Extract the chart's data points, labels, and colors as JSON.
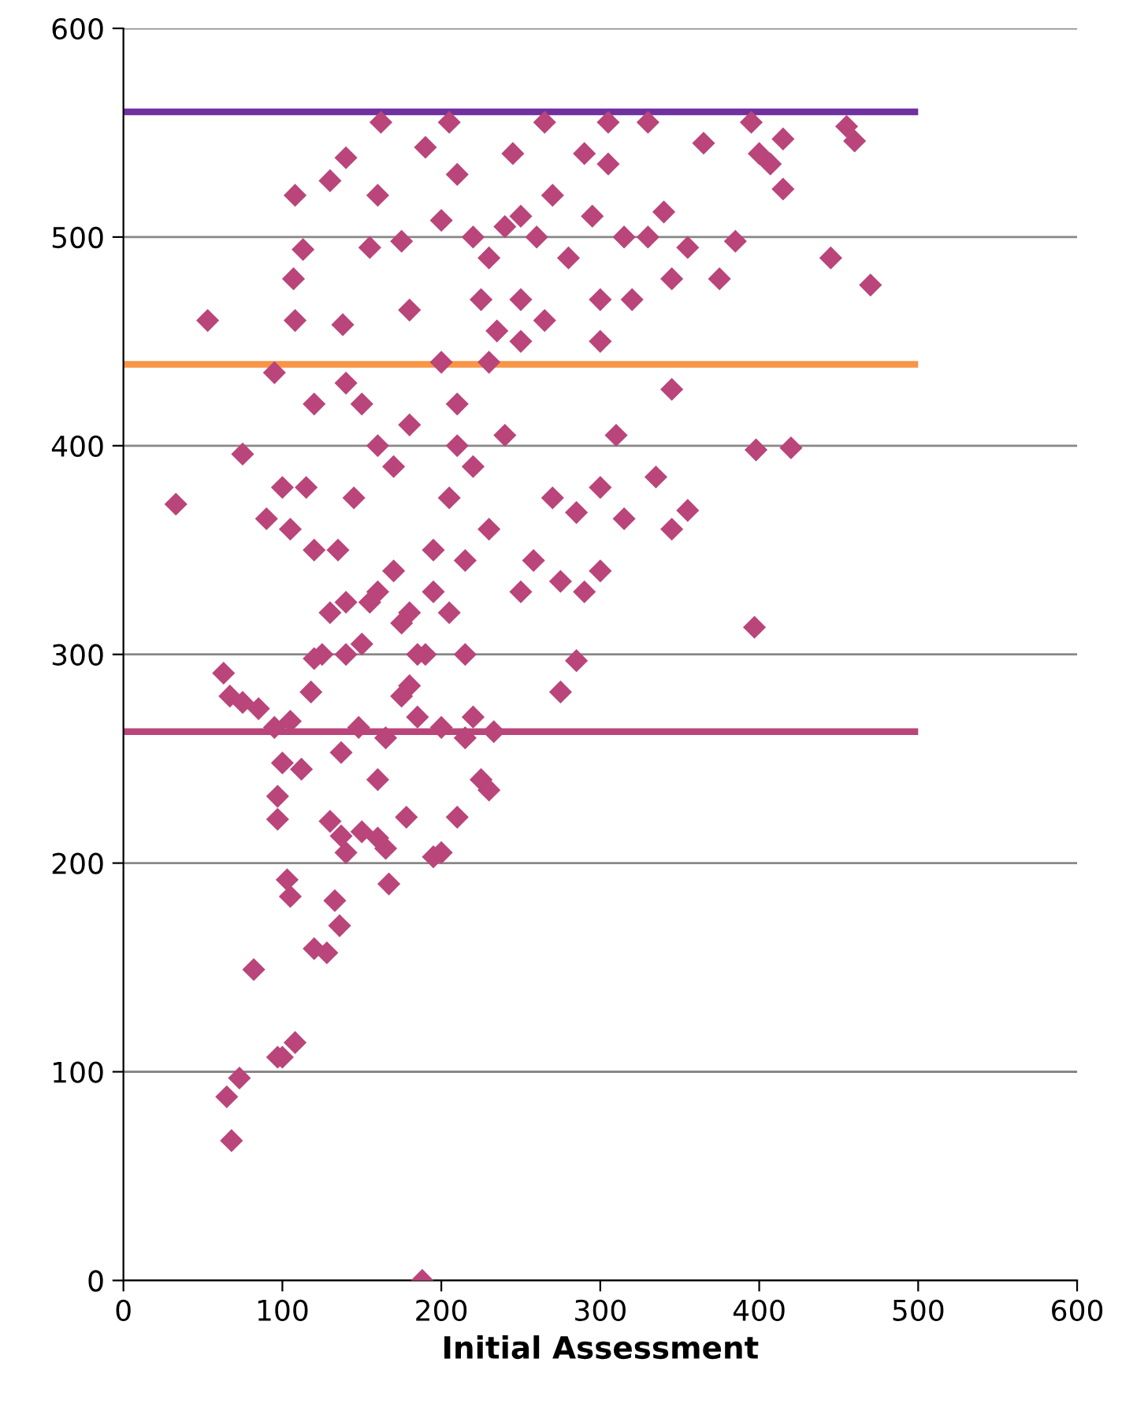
{
  "chart_data": {
    "type": "scatter",
    "xlabel": "Initial Assessment",
    "xlim": [
      0,
      600
    ],
    "xticks": [
      0,
      100,
      200,
      300,
      400,
      500,
      600
    ],
    "ylim": [
      0,
      600
    ],
    "yticks": [
      0,
      100,
      200,
      300,
      400,
      500,
      600
    ],
    "grid": "y",
    "marker": "diamond",
    "series": [
      {
        "color": "#b9457a",
        "x": [
          188,
          68,
          65,
          73,
          97,
          100,
          108,
          82,
          120,
          128,
          105,
          103,
          133,
          136,
          167,
          140,
          165,
          137,
          150,
          130,
          160,
          97,
          200,
          195,
          178,
          210,
          97,
          100,
          112,
          137,
          160,
          63,
          67,
          75,
          85,
          95,
          105,
          118,
          120,
          130,
          140,
          148,
          165,
          180,
          190,
          200,
          220,
          225,
          230,
          215,
          185,
          175,
          215,
          233,
          275,
          285,
          33,
          75,
          90,
          100,
          105,
          115,
          120,
          135,
          145,
          160,
          150,
          170,
          180,
          195,
          205,
          210,
          220,
          230,
          240,
          250,
          258,
          275,
          285,
          300,
          310,
          315,
          335,
          345,
          355,
          345,
          398,
          420,
          397,
          53,
          95,
          107,
          108,
          108,
          113,
          130,
          140,
          138,
          155,
          160,
          162,
          175,
          180,
          190,
          200,
          205,
          210,
          220,
          225,
          230,
          240,
          245,
          250,
          260,
          265,
          270,
          280,
          290,
          295,
          300,
          305,
          315,
          320,
          330,
          340,
          345,
          355,
          365,
          375,
          385,
          395,
          400,
          407,
          415,
          415,
          445,
          455,
          460,
          470,
          300,
          120,
          140,
          160,
          170,
          180,
          200,
          210,
          230,
          250,
          265,
          290,
          270,
          300,
          305,
          330,
          250,
          235,
          185,
          175,
          195,
          205,
          215,
          150,
          125,
          140,
          155
        ],
        "values": [
          0,
          67,
          88,
          97,
          107,
          107,
          114,
          149,
          159,
          157,
          184,
          192,
          182,
          170,
          190,
          205,
          207,
          213,
          215,
          220,
          212,
          221,
          205,
          203,
          222,
          222,
          232,
          248,
          245,
          253,
          240,
          291,
          280,
          277,
          274,
          265,
          268,
          282,
          298,
          320,
          300,
          265,
          260,
          285,
          300,
          265,
          270,
          240,
          235,
          300,
          270,
          280,
          260,
          263,
          282,
          297,
          372,
          396,
          365,
          380,
          360,
          380,
          350,
          350,
          375,
          400,
          420,
          390,
          410,
          350,
          375,
          400,
          390,
          360,
          405,
          330,
          345,
          335,
          368,
          340,
          405,
          365,
          385,
          360,
          369,
          427,
          398,
          399,
          313,
          460,
          435,
          480,
          460,
          520,
          494,
          527,
          538,
          458,
          495,
          520,
          555,
          498,
          465,
          543,
          508,
          555,
          530,
          500,
          470,
          490,
          505,
          540,
          470,
          500,
          555,
          520,
          490,
          540,
          510,
          470,
          555,
          500,
          470,
          500,
          512,
          480,
          495,
          545,
          480,
          498,
          555,
          540,
          535,
          523,
          547,
          490,
          553,
          546,
          477,
          450,
          420,
          430,
          330,
          340,
          320,
          440,
          420,
          440,
          450,
          460,
          330,
          375,
          380,
          535,
          555,
          510,
          455,
          300,
          315,
          330,
          320,
          345,
          305,
          300,
          325,
          325
        ]
      }
    ],
    "ref_lines": [
      {
        "axis": "y",
        "value": 560,
        "color": "#7030a0"
      },
      {
        "axis": "y",
        "value": 439,
        "color": "#f79646"
      },
      {
        "axis": "y",
        "value": 263,
        "color": "#b9457a"
      }
    ]
  }
}
